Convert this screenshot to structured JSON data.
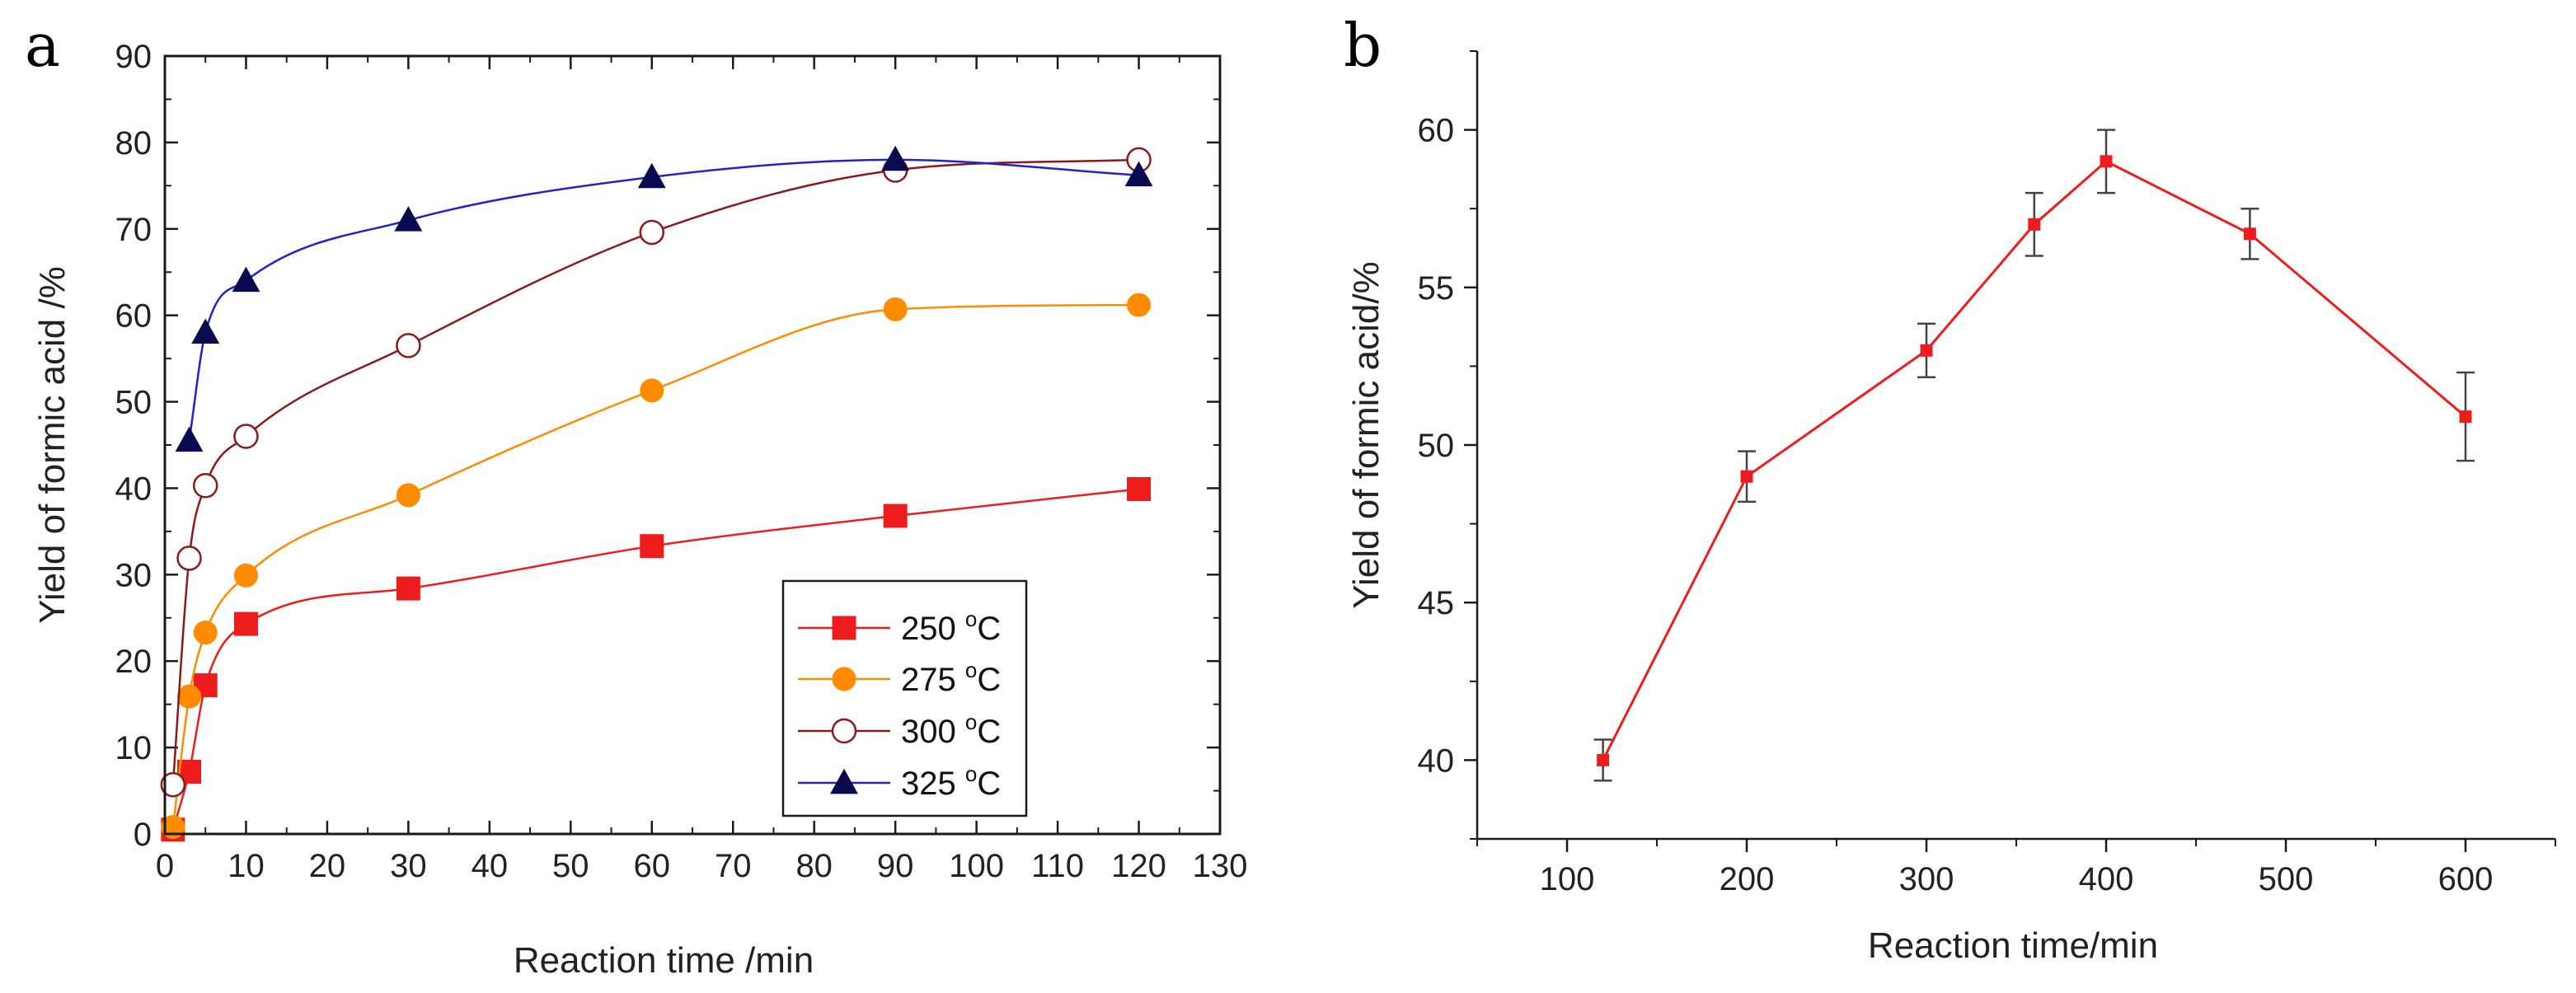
{
  "colors": {
    "axis": "#1a1a1a",
    "s250": "#ee1c1c",
    "s275": "#ff8c00",
    "s300": "#8b1a1a",
    "s325": "#2222cc",
    "marker325": "#0a0a50",
    "errorbar": "#444444"
  },
  "chart_data": [
    {
      "panel": "a",
      "type": "line",
      "xlabel": "Reaction time /min",
      "ylabel": "Yield of formic acid /%",
      "xlim": [
        0,
        130
      ],
      "ylim": [
        0,
        90
      ],
      "xticks": [
        0,
        10,
        20,
        30,
        40,
        50,
        60,
        70,
        80,
        90,
        100,
        110,
        120,
        130
      ],
      "yticks": [
        0,
        10,
        20,
        30,
        40,
        50,
        60,
        70,
        80,
        90
      ],
      "legend_position": "bottom-right",
      "smooth_fit": true,
      "series": [
        {
          "name": "250 °C",
          "label": "250 ",
          "unit_sup": "o",
          "unit": "C",
          "marker": "square",
          "filled": true,
          "x": [
            1,
            3,
            5,
            10,
            30,
            60,
            90,
            120
          ],
          "y": [
            0.5,
            7.2,
            17.2,
            24.3,
            28.4,
            33.3,
            36.8,
            39.9
          ]
        },
        {
          "name": "275 °C",
          "label": "275 ",
          "unit_sup": "o",
          "unit": "C",
          "marker": "circle",
          "filled": true,
          "x": [
            1,
            3,
            5,
            10,
            30,
            60,
            90,
            120
          ],
          "y": [
            0.8,
            15.9,
            23.3,
            29.9,
            39.2,
            51.3,
            60.7,
            61.2
          ]
        },
        {
          "name": "300 °C",
          "label": "300 ",
          "unit_sup": "o",
          "unit": "C",
          "marker": "circle",
          "filled": false,
          "x": [
            1,
            3,
            5,
            10,
            30,
            60,
            90,
            120
          ],
          "y": [
            5.7,
            31.9,
            40.3,
            46.0,
            56.5,
            69.6,
            76.8,
            78.0
          ]
        },
        {
          "name": "325 °C",
          "label": "325 ",
          "unit_sup": "o",
          "unit": "C",
          "marker": "triangle",
          "filled": true,
          "x": [
            3,
            5,
            10,
            30,
            60,
            90,
            120
          ],
          "y": [
            45.5,
            58.0,
            64.0,
            71.0,
            76.0,
            78.0,
            76.2
          ]
        }
      ]
    },
    {
      "panel": "b",
      "type": "line",
      "xlabel": "Reaction time/min",
      "ylabel": "Yield of formic acid/%",
      "xlim": [
        50,
        650
      ],
      "ylim": [
        37.5,
        62.5
      ],
      "xticks": [
        100,
        200,
        300,
        400,
        500,
        600
      ],
      "yticks": [
        40,
        45,
        50,
        55,
        60
      ],
      "series": [
        {
          "name": "yield",
          "marker": "square",
          "x": [
            120,
            200,
            300,
            360,
            400,
            480,
            600
          ],
          "y": [
            40.0,
            49.0,
            53.0,
            57.0,
            59.0,
            56.7,
            50.9
          ],
          "err": [
            0.65,
            0.8,
            0.85,
            1.0,
            1.0,
            0.8,
            1.4
          ]
        }
      ]
    }
  ]
}
